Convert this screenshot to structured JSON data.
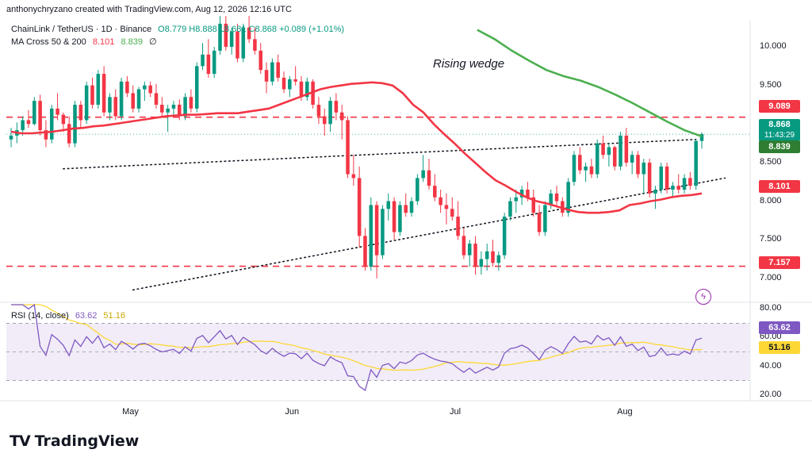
{
  "header": {
    "credit": "anthonychryzano created with TradingView.com, Aug 12, 2026 12:16 UTC"
  },
  "legend": {
    "symbol": "ChainLink / TetherUS · 1D · Binance",
    "ohlc": "O8.779 H8.888 L8.681 C8.868 +0.089 (+1.01%)",
    "ma_label": "MA Cross 50 & 200",
    "ma50": "8.101",
    "ma200": "8.839",
    "ma_extra": "∅",
    "rsi_label": "RSI (14, close)",
    "rsi_value": "63.62",
    "rsi_ma": "51.16"
  },
  "annotation": "Rising wedge",
  "price_tags": {
    "level_high": "9.089",
    "last_price": "8.868",
    "countdown": "11:43:29",
    "ma200": "8.839",
    "ma50": "8.101",
    "level_low": "7.157",
    "rsi": "63.62",
    "rsi_ma": "51.16"
  },
  "brand": "TradingView",
  "colors": {
    "up": "#089981",
    "down": "#f23645",
    "ma50": "#f23645",
    "ma200": "#4caf50",
    "rsi": "#7e57c2",
    "rsi_ma": "#fdd835",
    "level": "#f23645",
    "rsi_band": "#ede7f6"
  },
  "chart_data": {
    "type": "candlestick",
    "symbol": "LINKUSDT",
    "timeframe": "1D",
    "y_axis_ticks": [
      "10.000",
      "9.500",
      "9.000",
      "8.500",
      "8.000",
      "7.500",
      "7.000"
    ],
    "ylim": [
      6.7,
      10.35
    ],
    "x_axis_ticks": [
      "May",
      "Jun",
      "Jul",
      "Aug"
    ],
    "candles": [
      [
        8.8,
        8.95,
        8.7,
        8.85
      ],
      [
        8.85,
        9.02,
        8.75,
        8.92
      ],
      [
        8.92,
        9.1,
        8.85,
        9.05
      ],
      [
        9.05,
        9.18,
        8.95,
        9.0
      ],
      [
        9.0,
        9.35,
        8.98,
        9.3
      ],
      [
        9.3,
        9.38,
        8.85,
        8.92
      ],
      [
        8.92,
        9.05,
        8.7,
        8.8
      ],
      [
        8.8,
        9.25,
        8.75,
        9.2
      ],
      [
        9.2,
        9.4,
        9.05,
        9.12
      ],
      [
        9.12,
        9.15,
        8.9,
        9.0
      ],
      [
        9.0,
        9.1,
        8.7,
        8.75
      ],
      [
        8.75,
        9.3,
        8.7,
        9.25
      ],
      [
        9.25,
        9.3,
        8.95,
        9.05
      ],
      [
        9.05,
        9.55,
        9.0,
        9.5
      ],
      [
        9.5,
        9.6,
        9.2,
        9.25
      ],
      [
        9.25,
        9.7,
        9.2,
        9.65
      ],
      [
        9.65,
        9.75,
        9.1,
        9.15
      ],
      [
        9.15,
        9.4,
        9.05,
        9.35
      ],
      [
        9.35,
        9.45,
        9.05,
        9.1
      ],
      [
        9.1,
        9.6,
        9.05,
        9.55
      ],
      [
        9.55,
        9.62,
        9.35,
        9.4
      ],
      [
        9.4,
        9.5,
        9.15,
        9.2
      ],
      [
        9.2,
        9.48,
        9.15,
        9.45
      ],
      [
        9.45,
        9.55,
        9.3,
        9.5
      ],
      [
        9.5,
        9.55,
        9.35,
        9.4
      ],
      [
        9.4,
        9.52,
        9.2,
        9.25
      ],
      [
        9.25,
        9.35,
        9.1,
        9.15
      ],
      [
        9.15,
        9.25,
        8.9,
        9.2
      ],
      [
        9.2,
        9.3,
        9.1,
        9.25
      ],
      [
        9.25,
        9.32,
        9.05,
        9.1
      ],
      [
        9.1,
        9.4,
        9.05,
        9.35
      ],
      [
        9.35,
        9.45,
        9.15,
        9.2
      ],
      [
        9.2,
        9.8,
        9.15,
        9.75
      ],
      [
        9.75,
        10.05,
        9.7,
        9.9
      ],
      [
        9.9,
        10.1,
        9.6,
        9.65
      ],
      [
        9.65,
        10.0,
        9.6,
        9.95
      ],
      [
        9.95,
        10.4,
        9.9,
        10.3
      ],
      [
        10.3,
        10.4,
        9.95,
        10.0
      ],
      [
        10.0,
        10.25,
        9.9,
        10.2
      ],
      [
        10.2,
        10.3,
        9.8,
        9.85
      ],
      [
        9.85,
        10.3,
        9.8,
        10.25
      ],
      [
        10.25,
        10.4,
        10.05,
        10.1
      ],
      [
        10.1,
        10.25,
        9.9,
        9.95
      ],
      [
        9.95,
        10.05,
        9.65,
        9.7
      ],
      [
        9.7,
        9.8,
        9.4,
        9.55
      ],
      [
        9.55,
        9.85,
        9.5,
        9.8
      ],
      [
        9.8,
        9.9,
        9.55,
        9.6
      ],
      [
        9.6,
        9.68,
        9.4,
        9.45
      ],
      [
        9.45,
        9.62,
        9.35,
        9.58
      ],
      [
        9.58,
        9.75,
        9.5,
        9.55
      ],
      [
        9.55,
        9.62,
        9.3,
        9.35
      ],
      [
        9.35,
        9.6,
        9.3,
        9.55
      ],
      [
        9.55,
        9.58,
        9.2,
        9.25
      ],
      [
        9.25,
        9.35,
        9.0,
        9.1
      ],
      [
        9.1,
        9.2,
        8.85,
        9.0
      ],
      [
        9.0,
        9.35,
        8.9,
        9.3
      ],
      [
        9.3,
        9.4,
        9.05,
        9.15
      ],
      [
        9.15,
        9.25,
        8.8,
        9.05
      ],
      [
        9.05,
        9.1,
        8.3,
        8.35
      ],
      [
        8.35,
        8.6,
        8.2,
        8.3
      ],
      [
        8.3,
        8.45,
        7.4,
        7.55
      ],
      [
        7.55,
        7.65,
        7.1,
        7.15
      ],
      [
        7.15,
        8.05,
        7.1,
        7.95
      ],
      [
        7.95,
        8.0,
        7.0,
        7.3
      ],
      [
        7.3,
        7.95,
        7.25,
        7.9
      ],
      [
        7.9,
        8.1,
        7.75,
        8.0
      ],
      [
        8.0,
        8.05,
        7.5,
        7.6
      ],
      [
        7.6,
        8.0,
        7.55,
        7.95
      ],
      [
        7.95,
        8.1,
        7.8,
        7.85
      ],
      [
        7.85,
        8.05,
        7.8,
        8.0
      ],
      [
        8.0,
        8.35,
        7.95,
        8.3
      ],
      [
        8.3,
        8.6,
        8.25,
        8.4
      ],
      [
        8.4,
        8.55,
        8.15,
        8.2
      ],
      [
        8.2,
        8.35,
        8.0,
        8.05
      ],
      [
        8.05,
        8.15,
        7.85,
        7.95
      ],
      [
        7.95,
        8.1,
        7.7,
        7.9
      ],
      [
        7.9,
        8.05,
        7.75,
        7.8
      ],
      [
        7.8,
        8.0,
        7.5,
        7.55
      ],
      [
        7.55,
        7.65,
        7.25,
        7.3
      ],
      [
        7.3,
        7.5,
        7.15,
        7.45
      ],
      [
        7.45,
        7.55,
        7.05,
        7.15
      ],
      [
        7.15,
        7.35,
        7.05,
        7.25
      ],
      [
        7.25,
        7.45,
        7.1,
        7.35
      ],
      [
        7.35,
        7.5,
        7.15,
        7.2
      ],
      [
        7.2,
        7.35,
        7.1,
        7.3
      ],
      [
        7.3,
        7.85,
        7.25,
        7.8
      ],
      [
        7.8,
        8.05,
        7.75,
        8.0
      ],
      [
        8.0,
        8.15,
        7.85,
        8.05
      ],
      [
        8.05,
        8.2,
        7.95,
        8.15
      ],
      [
        8.15,
        8.25,
        8.0,
        8.05
      ],
      [
        8.05,
        8.15,
        7.8,
        7.85
      ],
      [
        7.85,
        7.95,
        7.55,
        7.6
      ],
      [
        7.6,
        8.0,
        7.55,
        7.95
      ],
      [
        7.95,
        8.15,
        7.9,
        8.1
      ],
      [
        8.1,
        8.2,
        7.95,
        8.0
      ],
      [
        8.0,
        8.05,
        7.8,
        7.85
      ],
      [
        7.85,
        8.3,
        7.8,
        8.25
      ],
      [
        8.25,
        8.65,
        8.2,
        8.6
      ],
      [
        8.6,
        8.7,
        8.35,
        8.4
      ],
      [
        8.4,
        8.5,
        8.25,
        8.45
      ],
      [
        8.45,
        8.55,
        8.3,
        8.35
      ],
      [
        8.35,
        8.8,
        8.3,
        8.75
      ],
      [
        8.75,
        8.85,
        8.55,
        8.6
      ],
      [
        8.6,
        8.75,
        8.45,
        8.7
      ],
      [
        8.7,
        8.72,
        8.4,
        8.45
      ],
      [
        8.45,
        8.9,
        8.4,
        8.85
      ],
      [
        8.85,
        8.95,
        8.45,
        8.5
      ],
      [
        8.5,
        8.65,
        8.35,
        8.6
      ],
      [
        8.6,
        8.65,
        8.3,
        8.35
      ],
      [
        8.35,
        8.55,
        8.1,
        8.5
      ],
      [
        8.5,
        8.55,
        8.05,
        8.1
      ],
      [
        8.1,
        8.2,
        7.9,
        8.15
      ],
      [
        8.15,
        8.5,
        8.1,
        8.45
      ],
      [
        8.45,
        8.5,
        8.1,
        8.15
      ],
      [
        8.15,
        8.25,
        8.05,
        8.2
      ],
      [
        8.2,
        8.35,
        8.1,
        8.15
      ],
      [
        8.15,
        8.35,
        8.1,
        8.3
      ],
      [
        8.3,
        8.38,
        8.15,
        8.2
      ],
      [
        8.2,
        8.8,
        8.15,
        8.78
      ],
      [
        8.78,
        8.89,
        8.68,
        8.87
      ]
    ],
    "levels": [
      9.089,
      7.157
    ],
    "ma50_last": 8.101,
    "ma200_last": 8.839,
    "ma50": [
      8.9,
      8.88,
      8.88,
      8.89,
      8.9,
      8.92,
      8.94,
      8.95,
      8.97,
      8.98,
      9.0,
      9.02,
      9.04,
      9.06,
      9.08,
      9.1,
      9.11,
      9.12,
      9.12,
      9.13,
      9.14,
      9.14,
      9.14,
      9.16,
      9.18,
      9.2,
      9.25,
      9.3,
      9.35,
      9.4,
      9.45,
      9.48,
      9.5,
      9.52,
      9.53,
      9.54,
      9.53,
      9.5,
      9.4,
      9.25,
      9.15,
      9.0,
      8.87,
      8.75,
      8.62,
      8.5,
      8.38,
      8.27,
      8.2,
      8.12,
      8.05,
      8.0,
      7.97,
      7.93,
      7.89,
      7.86,
      7.85,
      7.85,
      7.86,
      7.88,
      7.95,
      7.97,
      8.0,
      8.02,
      8.05,
      8.07,
      8.08,
      8.1
    ],
    "ma50_x": [
      0,
      4,
      8,
      12,
      16,
      20,
      24,
      28,
      32,
      36,
      40,
      44,
      48,
      52,
      56,
      60,
      64,
      68,
      72,
      76,
      80,
      84,
      88,
      92,
      96,
      100,
      104,
      108,
      112,
      116,
      120,
      124,
      128,
      132,
      136,
      140,
      144,
      148,
      152,
      156,
      160,
      164,
      168,
      172,
      176,
      180,
      184,
      188,
      192,
      196,
      200,
      204,
      208,
      212,
      216,
      220,
      224,
      228,
      232,
      236,
      240,
      244,
      248,
      252,
      256,
      260,
      264,
      268
    ],
    "ma200": [
      10.22,
      10.1,
      9.95,
      9.82,
      9.7,
      9.62,
      9.56,
      9.48,
      9.38,
      9.27,
      9.15,
      9.03,
      8.92,
      8.84
    ],
    "ma200_x": [
      135,
      140,
      145,
      150,
      155,
      160,
      165,
      170,
      175,
      180,
      185,
      190,
      195,
      200
    ],
    "wedge_upper": {
      "from": [
        9.0,
        8.42
      ],
      "to": [
        118.0,
        8.8
      ]
    },
    "wedge_lower": {
      "from": [
        21.0,
        6.85
      ],
      "to": [
        123.0,
        8.3
      ]
    },
    "rsi": {
      "label": "RSI (14, close)",
      "ticks": [
        "80.00",
        "60.00",
        "40.00",
        "20.00"
      ],
      "ylim": [
        17,
        83
      ],
      "band": [
        30,
        70
      ],
      "mid": 50,
      "rsi_last": 63.62,
      "ma_last": 51.16
    }
  }
}
